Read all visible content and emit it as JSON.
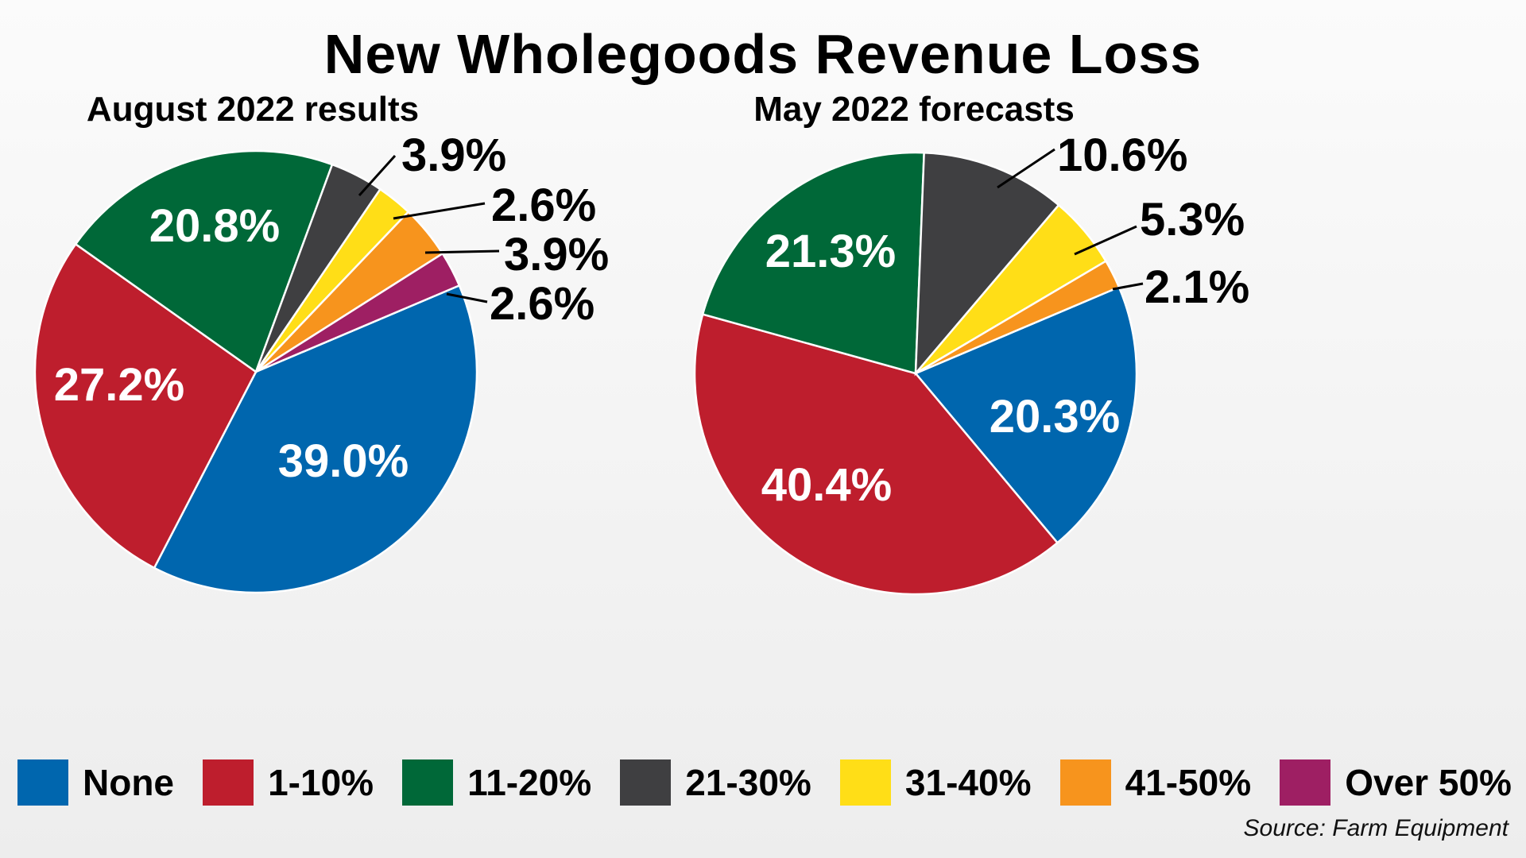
{
  "title": "New Wholegoods Revenue Loss",
  "source": "Source: Farm Equipment",
  "legend": [
    {
      "label": "None",
      "color": "#0066AE"
    },
    {
      "label": "1-10%",
      "color": "#BE1E2D"
    },
    {
      "label": "11-20%",
      "color": "#006838"
    },
    {
      "label": "21-30%",
      "color": "#3F3F41"
    },
    {
      "label": "31-40%",
      "color": "#FFDE17"
    },
    {
      "label": "41-50%",
      "color": "#F7941D"
    },
    {
      "label": "Over 50%",
      "color": "#9E1F63"
    }
  ],
  "chart_data": [
    {
      "type": "pie",
      "title": "August 2022 results",
      "categories": [
        "None",
        "1-10%",
        "11-20%",
        "21-30%",
        "31-40%",
        "41-50%",
        "Over 50%"
      ],
      "values": [
        39.0,
        27.2,
        20.8,
        3.9,
        2.6,
        3.9,
        2.6
      ],
      "labels": [
        "39.0%",
        "27.2%",
        "20.8%",
        "3.9%",
        "2.6%",
        "3.9%",
        "2.6%"
      ],
      "label_inside": [
        true,
        true,
        true,
        false,
        false,
        false,
        false
      ]
    },
    {
      "type": "pie",
      "title": "May 2022 forecasts",
      "categories": [
        "None",
        "1-10%",
        "11-20%",
        "21-30%",
        "31-40%",
        "41-50%",
        "Over 50%"
      ],
      "values": [
        20.3,
        40.4,
        21.3,
        10.6,
        5.3,
        2.1,
        0
      ],
      "labels": [
        "20.3%",
        "40.4%",
        "21.3%",
        "10.6%",
        "5.3%",
        "2.1%",
        ""
      ],
      "label_inside": [
        true,
        true,
        true,
        false,
        false,
        false,
        false
      ]
    }
  ]
}
